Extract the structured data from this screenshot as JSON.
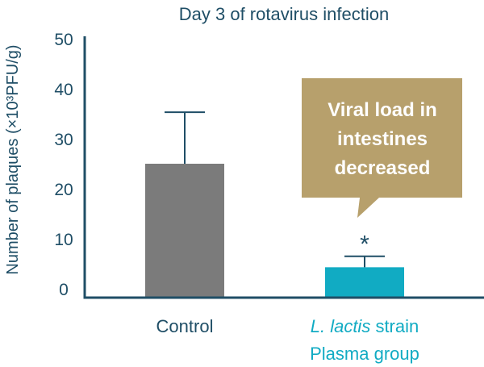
{
  "colors": {
    "axis": "#1f4e66",
    "text": "#1f4e66",
    "control_bar": "#7b7b7b",
    "treatment_bar": "#11abc3",
    "treatment_text": "#11abc3",
    "callout_bg": "#b7a06c",
    "callout_text": "#ffffff"
  },
  "chart_data": {
    "type": "bar",
    "title": "Day 3 of rotavirus infection",
    "ylabel": "Number of plaques (×10³PFU/g)",
    "xlabel": "",
    "ylim": [
      0,
      50
    ],
    "yticks": [
      0,
      10,
      20,
      30,
      40,
      50
    ],
    "categories": [
      "Control",
      "L. lactis strain Plasma group"
    ],
    "category_lines": [
      [
        {
          "text": "Control",
          "italic": false
        }
      ],
      [
        {
          "text": "L. lactis",
          "italic": true
        },
        {
          "text": " strain",
          "italic": false
        }
      ],
      [
        {
          "text": "Plasma group",
          "italic": false
        }
      ]
    ],
    "values": [
      25,
      4.3
    ],
    "error_upper": [
      35.3,
      6.5
    ],
    "significance": [
      "",
      "*"
    ],
    "grid": false,
    "annotation": {
      "lines": [
        "Viral load in",
        "intestines",
        "decreased"
      ],
      "target": "L. lactis strain Plasma group"
    }
  }
}
